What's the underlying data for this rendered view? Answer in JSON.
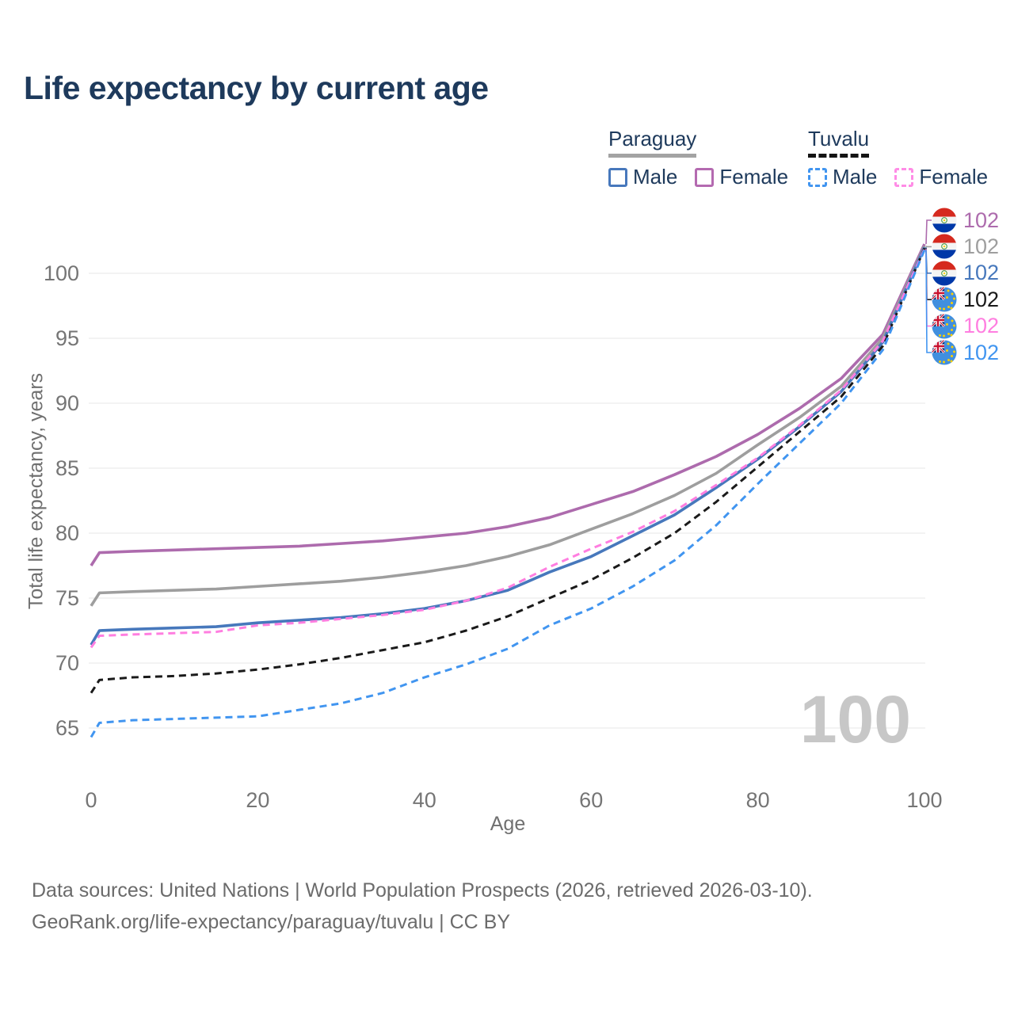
{
  "title": "Life expectancy by current age",
  "legend": {
    "groups": [
      {
        "label": "Paraguay",
        "line_style": "solid",
        "underline_color": "#a3a3a3",
        "items": [
          {
            "label": "Male",
            "color": "#4778bc",
            "dashed": false
          },
          {
            "label": "Female",
            "color": "#b46ab0",
            "dashed": false
          }
        ]
      },
      {
        "label": "Tuvalu",
        "line_style": "dashed",
        "underline_color": "#141414",
        "items": [
          {
            "label": "Male",
            "color": "#4195f0",
            "dashed": true
          },
          {
            "label": "Female",
            "color": "#ff8ce6",
            "dashed": true
          }
        ]
      }
    ]
  },
  "chart_data": {
    "type": "line",
    "title": "Life expectancy by current age",
    "xlabel": "Age",
    "ylabel": "Total life expectancy, years",
    "xlim": [
      0,
      100
    ],
    "ylim": [
      63,
      103
    ],
    "xticks": [
      0,
      20,
      40,
      60,
      80,
      100
    ],
    "yticks": [
      65,
      70,
      75,
      80,
      85,
      90,
      95,
      100
    ],
    "grid": true,
    "legend_position": "top-right",
    "x": [
      0,
      1,
      5,
      10,
      15,
      20,
      25,
      30,
      35,
      40,
      45,
      50,
      55,
      60,
      65,
      70,
      75,
      80,
      85,
      90,
      95,
      100
    ],
    "series": [
      {
        "name": "Paraguay Female",
        "country": "Paraguay",
        "sex": "female",
        "style": "solid",
        "color": "#ad6bad",
        "values": [
          77.5,
          78.5,
          78.6,
          78.7,
          78.8,
          78.9,
          79.0,
          79.2,
          79.4,
          79.7,
          80.0,
          80.5,
          81.2,
          82.2,
          83.2,
          84.5,
          85.9,
          87.6,
          89.6,
          91.9,
          95.3,
          102.25
        ]
      },
      {
        "name": "Paraguay (both sexes)",
        "country": "Paraguay",
        "sex": "total",
        "style": "solid",
        "color": "#9e9e9e",
        "values": [
          74.4,
          75.4,
          75.5,
          75.6,
          75.7,
          75.9,
          76.1,
          76.3,
          76.6,
          77.0,
          77.5,
          78.2,
          79.1,
          80.3,
          81.5,
          82.9,
          84.6,
          86.8,
          88.9,
          91.3,
          95.0,
          102.1
        ]
      },
      {
        "name": "Paraguay Male",
        "country": "Paraguay",
        "sex": "male",
        "style": "solid",
        "color": "#4778bc",
        "values": [
          71.4,
          72.5,
          72.6,
          72.7,
          72.8,
          73.1,
          73.3,
          73.5,
          73.8,
          74.2,
          74.8,
          75.6,
          77.0,
          78.2,
          79.8,
          81.4,
          83.5,
          85.7,
          88.2,
          90.9,
          94.7,
          102.0
        ]
      },
      {
        "name": "Tuvalu (both sexes)",
        "country": "Tuvalu",
        "sex": "total",
        "style": "dashed",
        "color": "#1a1a1a",
        "values": [
          67.7,
          68.7,
          68.9,
          69.0,
          69.2,
          69.5,
          69.9,
          70.4,
          71.0,
          71.6,
          72.5,
          73.6,
          75.0,
          76.4,
          78.1,
          80.0,
          82.4,
          85.1,
          87.8,
          90.5,
          94.4,
          101.93
        ]
      },
      {
        "name": "Tuvalu Female",
        "country": "Tuvalu",
        "sex": "female",
        "style": "dashed",
        "color": "#ff7ee0",
        "values": [
          71.2,
          72.1,
          72.2,
          72.3,
          72.4,
          72.9,
          73.1,
          73.4,
          73.7,
          74.1,
          74.8,
          75.8,
          77.4,
          78.8,
          80.1,
          81.7,
          83.7,
          85.8,
          88.3,
          91.0,
          94.8,
          101.87
        ]
      },
      {
        "name": "Tuvalu Male",
        "country": "Tuvalu",
        "sex": "male",
        "style": "dashed",
        "color": "#4195f0",
        "values": [
          64.3,
          65.4,
          65.6,
          65.7,
          65.8,
          65.9,
          66.4,
          66.9,
          67.7,
          68.9,
          69.9,
          71.1,
          72.9,
          74.2,
          75.9,
          77.9,
          80.6,
          83.8,
          86.9,
          90.0,
          94.1,
          101.8
        ]
      }
    ]
  },
  "end_labels": [
    {
      "flag": "paraguay",
      "value": "102",
      "color": "#ad6bad"
    },
    {
      "flag": "paraguay",
      "value": "102",
      "color": "#9e9e9e"
    },
    {
      "flag": "paraguay",
      "value": "102",
      "color": "#4778bc"
    },
    {
      "flag": "tuvalu",
      "value": "102",
      "color": "#1a1a1a"
    },
    {
      "flag": "tuvalu",
      "value": "102",
      "color": "#ff7ee0"
    },
    {
      "flag": "tuvalu",
      "value": "102",
      "color": "#4195f0"
    }
  ],
  "age_indicator": "100",
  "footer": {
    "line1": "Data sources: United Nations | World Population Prospects (2026, retrieved 2026-03-10).",
    "line2": "GeoRank.org/life-expectancy/paraguay/tuvalu | CC BY"
  },
  "colors": {
    "title": "#1e3a5c",
    "axis_text": "#757575",
    "gridline": "#ececec",
    "watermark": "#c7c7c7"
  }
}
